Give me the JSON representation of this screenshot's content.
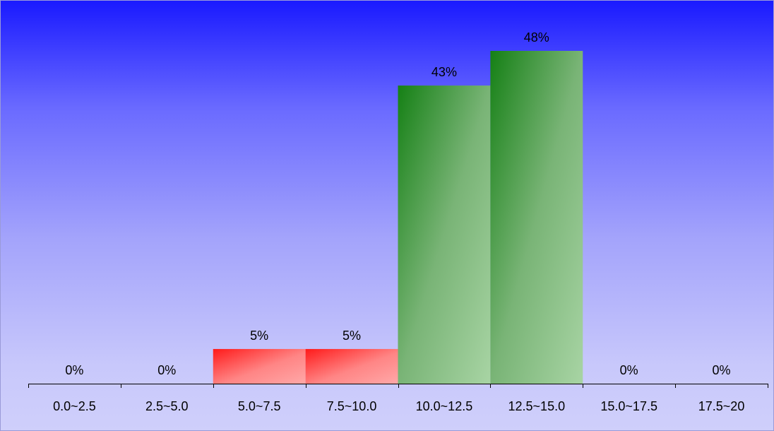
{
  "chart_data": {
    "type": "bar",
    "categories": [
      "0.0~2.5",
      "2.5~5.0",
      "5.0~7.5",
      "7.5~10.0",
      "10.0~12.5",
      "12.5~15.0",
      "15.0~17.5",
      "17.5~20"
    ],
    "values": [
      0,
      0,
      5,
      5,
      43,
      48,
      0,
      0
    ],
    "data_labels": [
      "0%",
      "0%",
      "5%",
      "5%",
      "43%",
      "48%",
      "0%",
      "0%"
    ],
    "value_unit": "%",
    "ylim": [
      0,
      48
    ],
    "grid": false,
    "legend": "none",
    "colors": {
      "low_bar_dark": "#ff1a1a",
      "low_bar_light": "#ffa8a8",
      "high_bar_dark": "#158015",
      "high_bar_light": "#a8d4a4",
      "axis": "#000000",
      "bg_top": "#1a1aff",
      "bg_bottom": "#cfcffb"
    },
    "bar_color_groups": [
      "green",
      "green",
      "red",
      "red",
      "green",
      "green",
      "green",
      "green"
    ]
  }
}
